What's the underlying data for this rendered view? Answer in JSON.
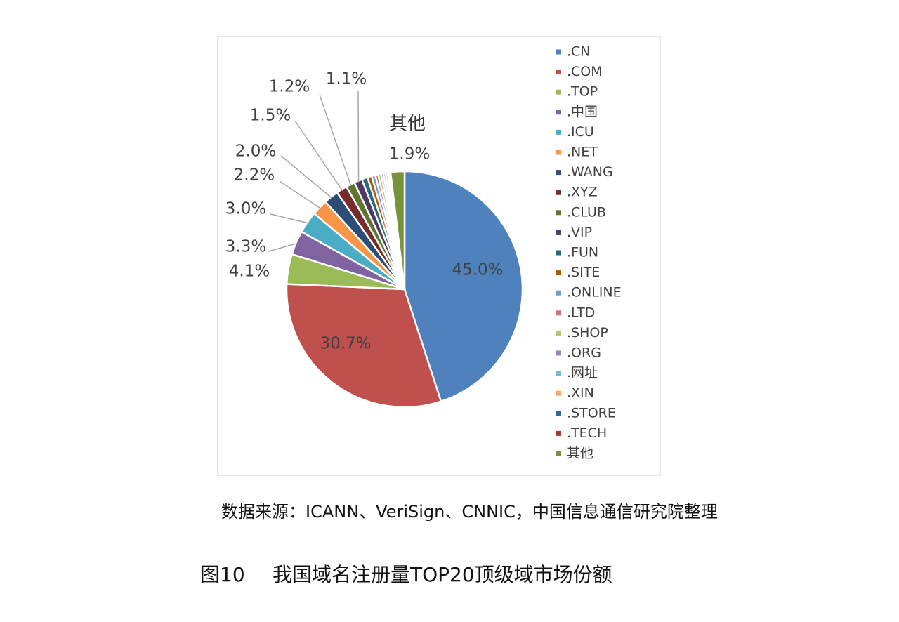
{
  "chart_data": {
    "type": "pie",
    "title": "我国域名注册量TOP20顶级域市场份额",
    "figure_number": "图10",
    "source": "数据来源：ICANN、VeriSign、CNNIC，中国信息通信研究院整理",
    "categories": [
      ".CN",
      ".COM",
      ".TOP",
      ".中国",
      ".ICU",
      ".NET",
      ".WANG",
      ".XYZ",
      ".CLUB",
      ".VIP",
      ".FUN",
      ".SITE",
      ".ONLINE",
      ".LTD",
      ".SHOP",
      ".ORG",
      ".网址",
      ".XIN",
      ".STORE",
      ".TECH",
      "其他"
    ],
    "values": [
      45.0,
      30.7,
      4.1,
      3.3,
      3.0,
      2.2,
      2.0,
      1.5,
      1.2,
      1.1,
      0.8,
      0.6,
      0.5,
      0.4,
      0.4,
      0.3,
      0.3,
      0.3,
      0.2,
      0.2,
      1.9
    ],
    "value_labels": [
      "45.0%",
      "30.7%",
      "4.1%",
      "3.3%",
      "3.0%",
      "2.2%",
      "2.0%",
      "1.5%",
      "1.2%",
      "1.1%",
      null,
      null,
      null,
      null,
      null,
      null,
      null,
      null,
      null,
      null,
      "1.9%"
    ],
    "colors": [
      "#4f81bd",
      "#c0504d",
      "#9bbb59",
      "#8064a2",
      "#4bacc6",
      "#f79646",
      "#2c4d75",
      "#772c2a",
      "#5f7530",
      "#4d3b62",
      "#276a7c",
      "#b65708",
      "#729aca",
      "#cd7371",
      "#afc97a",
      "#9983b5",
      "#6fbdd1",
      "#f9ab6b",
      "#3a6599",
      "#9c3a38",
      "#77933c"
    ],
    "legend": "right"
  }
}
